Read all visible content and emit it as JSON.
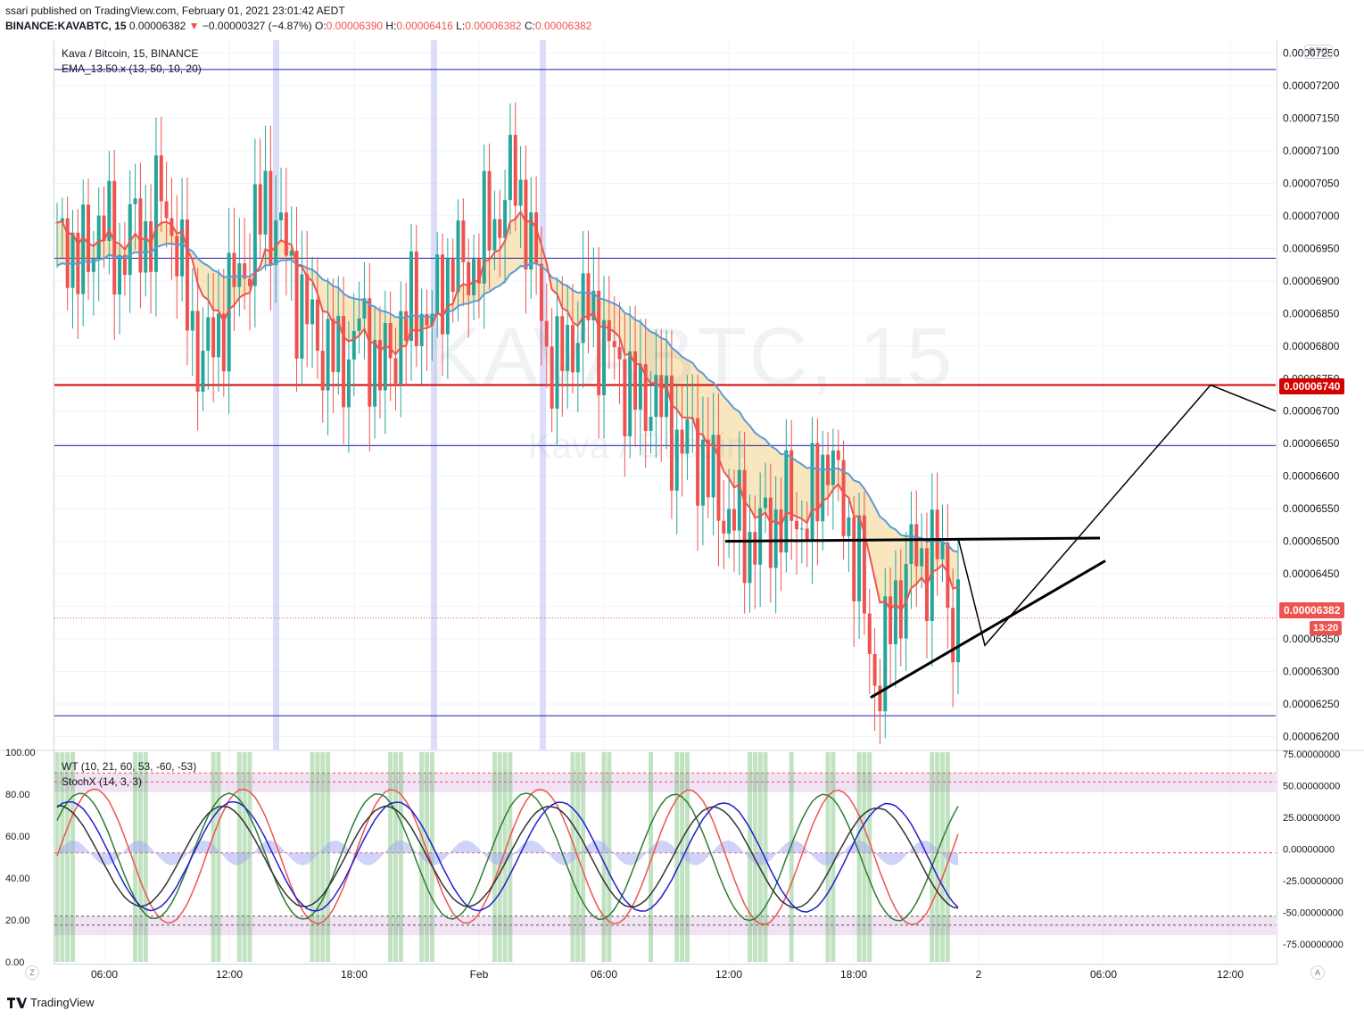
{
  "header": {
    "line1": "ssari published on TradingView.com, February 01, 2021 23:01:42 AEDT",
    "symbol": "BINANCE:KAVABTC, 15",
    "last": "0.00006382",
    "arrow": "▼",
    "change": "−0.00000327 (−4.87%)",
    "o_label": "O:",
    "o_val": "0.00006390",
    "h_label": "H:",
    "h_val": "0.00006416",
    "l_label": "L:",
    "l_val": "0.00006382",
    "c_label": "C:",
    "c_val": "0.00006382"
  },
  "legend": {
    "title": "Kava / Bitcoin, 15, BINANCE",
    "ema": "EMA_13.50.x (13, 50, 10, 20)",
    "wt": "WT (10, 21, 60, 53, -60, -53)",
    "stoch": "StochX (14, 3, 3)"
  },
  "watermark": {
    "big": "KAVABTC, 15",
    "small": "Kava / Bitcoin"
  },
  "currency_box": "BTC",
  "badges": {
    "level": "0.00006740",
    "last": "0.00006382",
    "countdown": "13:20"
  },
  "footer": {
    "brand": "TradingView"
  },
  "corner": {
    "left": "Z",
    "right": "A"
  },
  "colors": {
    "up": "#26a69a",
    "down": "#ef5350",
    "ema_fast": "#ef5350",
    "ema_slow": "#5b9bd5",
    "fill": "#f5deaa",
    "hline": "#1e1ea8",
    "level": "#d50000",
    "wt_fast": "#ef5350",
    "wt_slow": "#1f1fd0",
    "wt2": "#2e7d32",
    "stoch": "#333333",
    "bg_highlight": "#4caf50"
  },
  "chart_data": {
    "type": "candlestick",
    "title": "Kava / Bitcoin, 15, BINANCE",
    "price_axis": {
      "ticks": [
        "0.00007250",
        "0.00007200",
        "0.00007150",
        "0.00007100",
        "0.00007050",
        "0.00007000",
        "0.00006950",
        "0.00006900",
        "0.00006850",
        "0.00006800",
        "0.00006750",
        "0.00006700",
        "0.00006650",
        "0.00006600",
        "0.00006550",
        "0.00006500",
        "0.00006450",
        "0.00006400",
        "0.00006350",
        "0.00006300",
        "0.00006250",
        "0.00006200"
      ],
      "range": [
        6.18e-05,
        7.27e-05
      ]
    },
    "time_axis": {
      "ticks": [
        "06:00",
        "12:00",
        "18:00",
        "Feb",
        "06:00",
        "12:00",
        "18:00",
        "2",
        "06:00",
        "12:00"
      ]
    },
    "horizontal_levels": [
      7.225e-05,
      6.935e-05,
      6.74e-05,
      6.647e-05,
      6.232e-05
    ],
    "key_level": 6.74e-05,
    "last_price": 6.382e-05,
    "candles_close_path": [
      6.95e-05,
      6.97e-05,
      6.92e-05,
      6.94e-05,
      7e-05,
      6.96e-05,
      6.93e-05,
      6.98e-05,
      6.97e-05,
      6.98e-05,
      7.03e-05,
      6.99e-05,
      6.9e-05,
      6.83e-05,
      6.77e-05,
      6.81e-05,
      6.85e-05,
      6.89e-05,
      6.93e-05,
      6.97e-05,
      7.02e-05,
      6.99e-05,
      6.94e-05,
      6.88e-05,
      6.84e-05,
      6.81e-05,
      6.79e-05,
      6.77e-05,
      6.79e-05,
      6.83e-05,
      6.8e-05,
      6.76e-05,
      6.78e-05,
      6.83e-05,
      6.85e-05,
      6.86e-05,
      6.84e-05,
      6.89e-05,
      6.94e-05,
      6.91e-05,
      6.93e-05,
      6.97e-05,
      6.99e-05,
      7.03e-05,
      7.06e-05,
      7e-05,
      6.9e-05,
      6.8e-05,
      6.76e-05,
      6.8e-05,
      6.83e-05,
      6.86e-05,
      6.82e-05,
      6.79e-05,
      6.77e-05,
      6.73e-05,
      6.71e-05,
      6.73e-05,
      6.7e-05,
      6.67e-05,
      6.64e-05,
      6.66e-05,
      6.62e-05,
      6.58e-05,
      6.55e-05,
      6.53e-05,
      6.51e-05,
      6.5e-05,
      6.52e-05,
      6.53e-05,
      6.55e-05,
      6.54e-05,
      6.53e-05,
      6.58e-05,
      6.65e-05,
      6.57e-05,
      6.52e-05,
      6.46e-05,
      6.32e-05,
      6.29e-05,
      6.37e-05,
      6.43e-05,
      6.48e-05,
      6.46e-05,
      6.49e-05,
      6.46e-05,
      6.38e-05
    ],
    "drawings": {
      "horizontal_trendline": [
        [
          6.5e-05,
          "12:00"
        ],
        [
          6.505e-05,
          "2 06:00"
        ]
      ],
      "rising_trendline": "from 0.0000626 to 0.0000647",
      "projection_path": "drop to ~0.0000635 then rise to 0.0000674 and fall"
    },
    "indicator_axis_left": [
      "100.00",
      "80.00",
      "60.00",
      "40.00",
      "20.00",
      "0.00"
    ],
    "indicator_axis_right": [
      "75.00000000",
      "50.00000000",
      "25.00000000",
      "0.00000000",
      "-25.00000000",
      "-50.00000000",
      "-75.00000000"
    ]
  }
}
